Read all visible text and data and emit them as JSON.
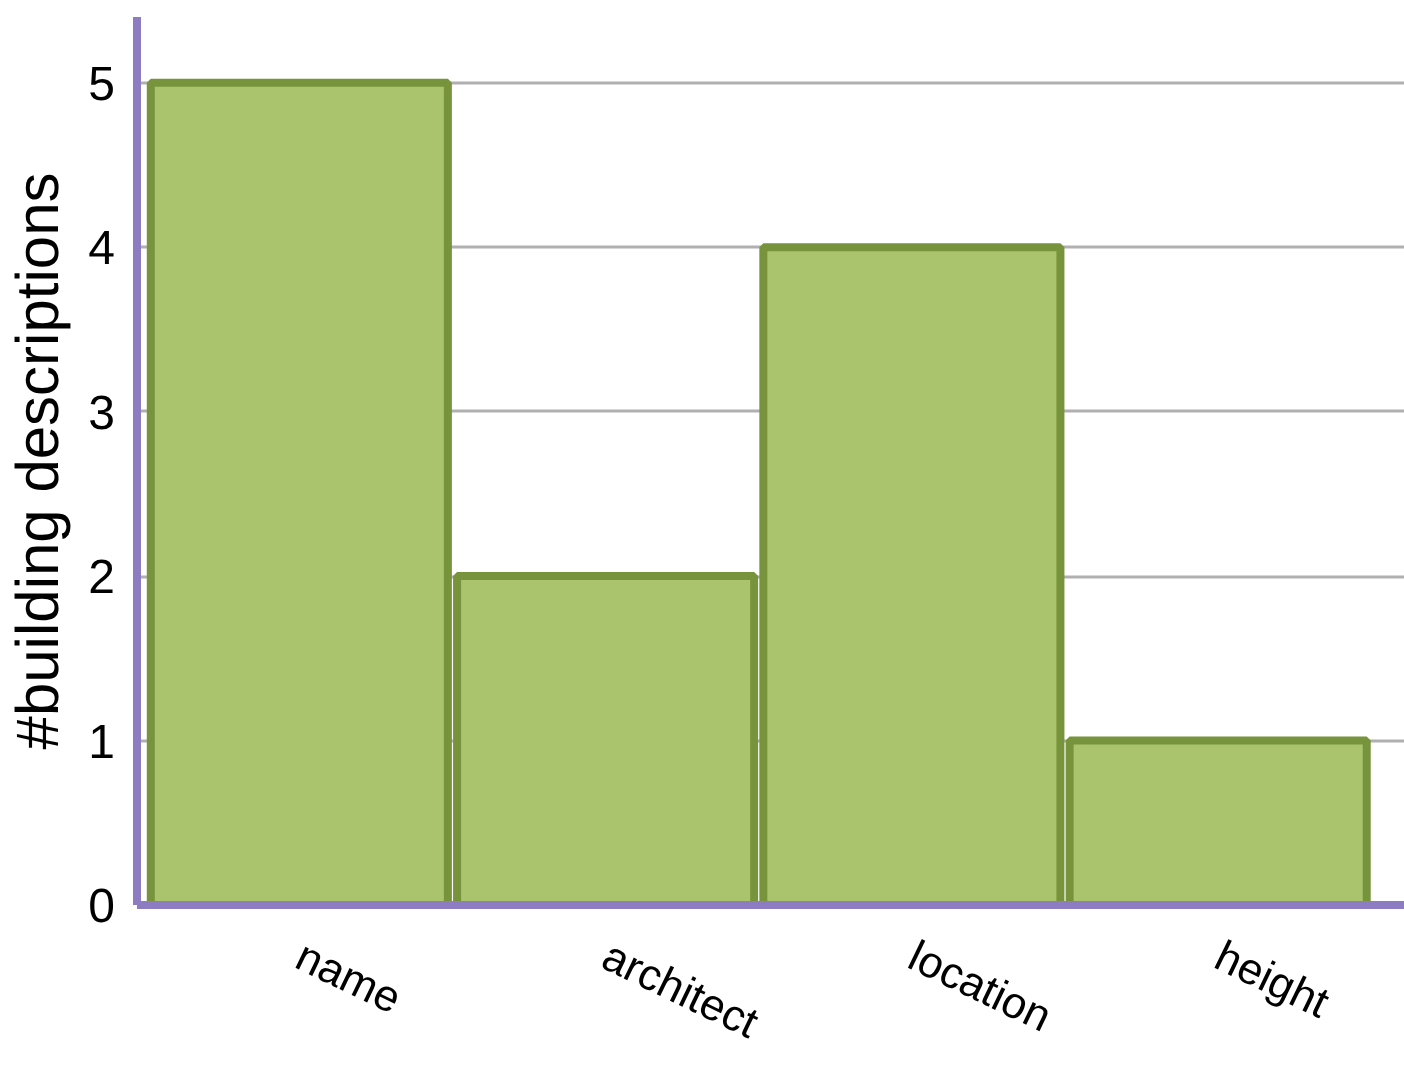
{
  "chart_data": {
    "type": "bar",
    "ylabel": "#building descriptions",
    "categories": [
      "name",
      "architect",
      "location",
      "height"
    ],
    "values": [
      5,
      2,
      4,
      1
    ],
    "color": "#a9c46c",
    "ylim": [
      0,
      5.4
    ],
    "yticks": [
      0,
      1,
      2,
      3,
      4,
      5
    ],
    "grid": "y"
  }
}
